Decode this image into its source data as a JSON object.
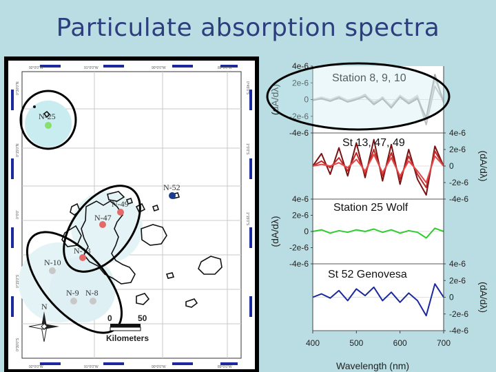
{
  "title": "Particulate absorption spectra",
  "map": {
    "stations": [
      {
        "label": "N-25",
        "color": "#86e06a"
      },
      {
        "label": "N-52",
        "color": "#1a3c8c"
      },
      {
        "label": "N-49",
        "color": "#e46a6a"
      },
      {
        "label": "N-47",
        "color": "#e46a6a"
      },
      {
        "label": "N-13",
        "color": "#e46a6a"
      },
      {
        "label": "N-10",
        "color": "#c8c8c8"
      },
      {
        "label": "N-9",
        "color": "#c8c8c8"
      },
      {
        "label": "N-8",
        "color": "#c8c8c8"
      }
    ],
    "lat_labels": [
      "0°30'0\"N",
      "0°15'0\"N",
      "0°0'0\"",
      "0°15'0\"S",
      "0°30'0\"S",
      "0°45'0\"S",
      "1°0'0\"S",
      "1°15'0\"S"
    ],
    "lon_labels": [
      "92°0'0\"W",
      "91°0'0\"W",
      "90°0'0\"W",
      "89°0'0\"W"
    ],
    "scale_0": "0",
    "scale_50": "50",
    "scale_unit": "Kilometers",
    "north": "N"
  },
  "chart_data": [
    {
      "type": "line",
      "panel_title": "Station 8, 9, 10",
      "ylabel": "(dA/dλ)",
      "ylim": [
        -4e-06,
        4e-06
      ],
      "yticks": [
        "4e-6",
        "2e-6",
        "0",
        "-2e-6",
        "-4e-6"
      ],
      "color": "#c8c8c8",
      "series": [
        {
          "x": [
            400,
            420,
            440,
            460,
            480,
            500,
            520,
            540,
            560,
            580,
            600,
            620,
            640,
            660,
            680,
            700
          ],
          "y": [
            0,
            2e-07,
            -1e-07,
            3e-07,
            -2e-07,
            1e-07,
            6e-07,
            -5e-07,
            3e-07,
            -9e-07,
            4e-07,
            -4e-07,
            3e-07,
            -3e-06,
            1.6e-06,
            -2e-07
          ]
        },
        {
          "x": [
            400,
            420,
            440,
            460,
            480,
            500,
            520,
            540,
            560,
            580,
            600,
            620,
            640,
            660,
            680,
            700
          ],
          "y": [
            0,
            3e-07,
            0,
            4e-07,
            -1e-07,
            2e-07,
            5e-07,
            -3e-07,
            2e-07,
            -7e-07,
            5e-07,
            -2e-07,
            5e-07,
            -2.6e-06,
            2.4e-06,
            0
          ]
        },
        {
          "x": [
            400,
            420,
            440,
            460,
            480,
            500,
            520,
            540,
            560,
            580,
            600,
            620,
            640,
            660,
            680,
            700
          ],
          "y": [
            -1e-07,
            1e-07,
            -2e-07,
            2e-07,
            -3e-07,
            0,
            4e-07,
            -6e-07,
            1e-07,
            -1e-06,
            3e-07,
            -5e-07,
            1e-07,
            -2.2e-06,
            3e-06,
            -4e-07
          ]
        }
      ]
    },
    {
      "type": "line",
      "panel_title": "St 13, 47, 49",
      "ylabel": "(dA/dλ)",
      "ylim": [
        -4e-06,
        4e-06
      ],
      "yticks": [
        "4e-6",
        "2e-6",
        "0",
        "-2e-6",
        "-4e-6"
      ],
      "color": "#a01818",
      "series": [
        {
          "x": [
            400,
            420,
            440,
            460,
            480,
            500,
            520,
            540,
            560,
            580,
            600,
            620,
            640,
            660,
            680,
            700
          ],
          "y": [
            0,
            1.5e-06,
            -1e-06,
            2.2e-06,
            -1.2e-06,
            2.8e-06,
            -1.4e-06,
            3.2e-06,
            -1.8e-06,
            2.6e-06,
            -2.2e-06,
            2e-06,
            -1.6e-06,
            -3.5e-06,
            2.4e-06,
            0
          ]
        },
        {
          "x": [
            400,
            420,
            440,
            460,
            480,
            500,
            520,
            540,
            560,
            580,
            600,
            620,
            640,
            660,
            680,
            700
          ],
          "y": [
            0,
            6e-07,
            -2e-07,
            1e-06,
            -6e-07,
            1.6e-06,
            -1e-06,
            2e-06,
            -1.2e-06,
            1.6e-06,
            -1.6e-06,
            1.2e-06,
            -1e-06,
            -2.6e-06,
            1.8e-06,
            0
          ]
        },
        {
          "x": [
            400,
            420,
            440,
            460,
            480,
            500,
            520,
            540,
            560,
            580,
            600,
            620,
            640,
            660,
            680,
            700
          ],
          "y": [
            0,
            2e-07,
            0,
            4e-07,
            -2e-07,
            8e-07,
            -6e-07,
            1.4e-06,
            -8e-07,
            1e-06,
            -1.2e-06,
            6e-07,
            -6e-07,
            -2e-06,
            1.2e-06,
            0
          ]
        }
      ]
    },
    {
      "type": "line",
      "panel_title": "Station 25 Wolf",
      "ylabel": "(dA/dλ)",
      "ylim": [
        -4e-06,
        4e-06
      ],
      "yticks": [
        "4e-6",
        "2e-6",
        "0",
        "-2e-6",
        "-4e-6"
      ],
      "color": "#2ecc2e",
      "series": [
        {
          "x": [
            400,
            420,
            440,
            460,
            480,
            500,
            520,
            540,
            560,
            580,
            600,
            620,
            640,
            660,
            680,
            700
          ],
          "y": [
            0,
            2e-07,
            -2e-07,
            1e-07,
            -1e-07,
            2e-07,
            0,
            3e-07,
            -1e-07,
            2e-07,
            -2e-07,
            1e-07,
            -1e-07,
            -8e-07,
            4e-07,
            0
          ]
        }
      ]
    },
    {
      "type": "line",
      "panel_title": "St 52 Genovesa",
      "ylabel": "(dA/dλ)",
      "xlabel": "Wavelength (nm)",
      "xticks": [
        "400",
        "500",
        "600",
        "700"
      ],
      "ylim": [
        -4e-06,
        4e-06
      ],
      "yticks": [
        "4e-6",
        "2e-6",
        "0",
        "-2e-6",
        "-4e-6"
      ],
      "color": "#1a2a9c",
      "series": [
        {
          "x": [
            400,
            420,
            440,
            460,
            480,
            500,
            520,
            540,
            560,
            580,
            600,
            620,
            640,
            660,
            680,
            700
          ],
          "y": [
            0,
            4e-07,
            -1e-07,
            8e-07,
            -4e-07,
            1e-06,
            2e-07,
            1.2e-06,
            -4e-07,
            6e-07,
            -6e-07,
            5e-07,
            -4e-07,
            -2.2e-06,
            1.6e-06,
            0
          ]
        }
      ]
    }
  ]
}
